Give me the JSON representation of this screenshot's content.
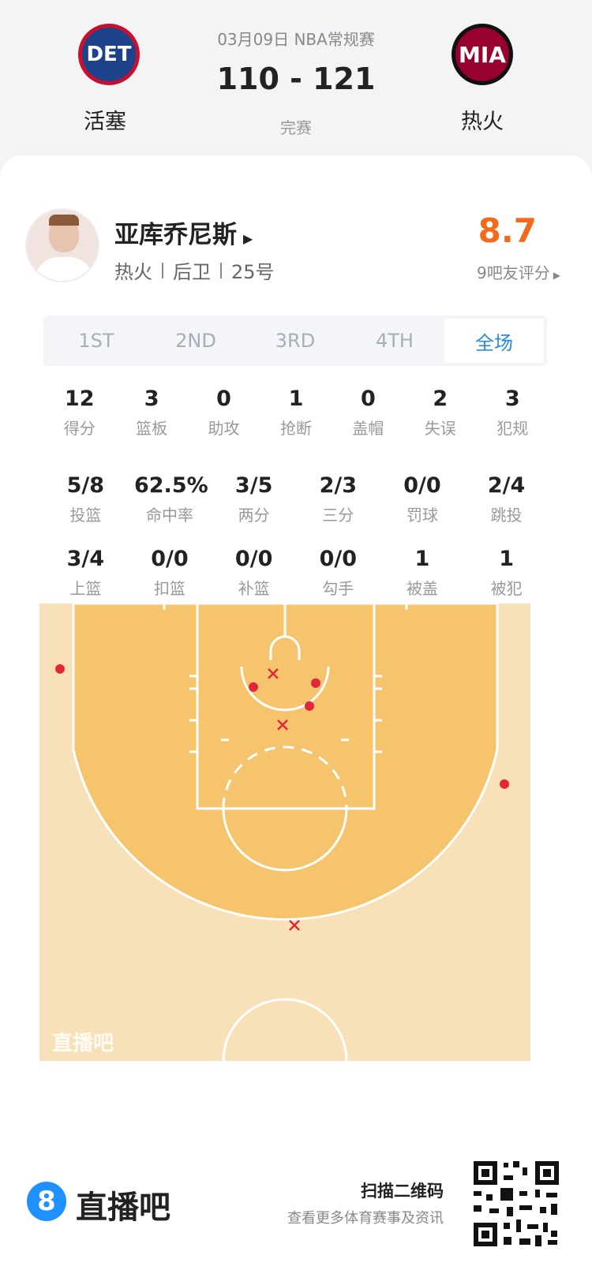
{
  "header": {
    "date_league": "03月09日 NBA常规赛",
    "score": "110 - 121",
    "status": "完赛",
    "home": {
      "logo": "DET",
      "name": "活塞"
    },
    "away": {
      "logo": "MIA",
      "name": "热火"
    }
  },
  "player": {
    "name": "亚库乔尼斯",
    "info": [
      "热火",
      "后卫",
      "25号"
    ],
    "rating": "8.7",
    "rating_label": "9吧友评分"
  },
  "tabs": [
    "1ST",
    "2ND",
    "3RD",
    "4TH",
    "全场"
  ],
  "active_tab": 4,
  "stats": [
    [
      {
        "value": "12",
        "label": "得分"
      },
      {
        "value": "3",
        "label": "篮板"
      },
      {
        "value": "0",
        "label": "助攻"
      },
      {
        "value": "1",
        "label": "抢断"
      },
      {
        "value": "0",
        "label": "盖帽"
      },
      {
        "value": "2",
        "label": "失误"
      },
      {
        "value": "3",
        "label": "犯规"
      }
    ],
    [
      {
        "value": "5/8",
        "label": "投篮"
      },
      {
        "value": "62.5%",
        "label": "命中率"
      },
      {
        "value": "3/5",
        "label": "两分"
      },
      {
        "value": "2/3",
        "label": "三分"
      },
      {
        "value": "0/0",
        "label": "罚球"
      },
      {
        "value": "2/4",
        "label": "跳投"
      }
    ],
    [
      {
        "value": "3/4",
        "label": "上篮"
      },
      {
        "value": "0/0",
        "label": "扣篮"
      },
      {
        "value": "0/0",
        "label": "补篮"
      },
      {
        "value": "0/0",
        "label": "勾手"
      },
      {
        "value": "1",
        "label": "被盖"
      },
      {
        "value": "1",
        "label": "被犯"
      }
    ]
  ],
  "court": {
    "watermark": "直播吧"
  },
  "footer": {
    "logo_num": "8",
    "brand": "直播吧",
    "scan": "扫描二维码",
    "sub": "查看更多体育赛事及资讯"
  }
}
